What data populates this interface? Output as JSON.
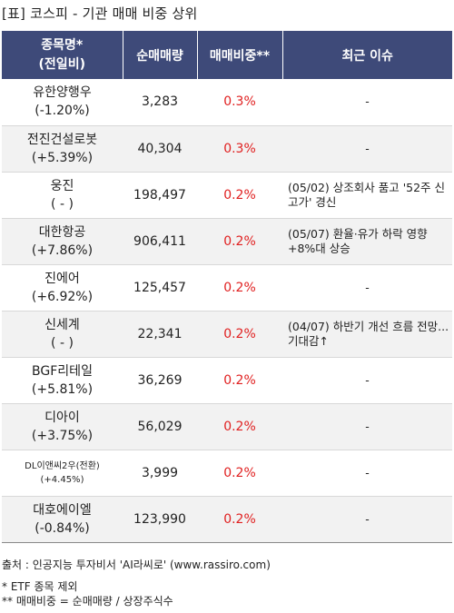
{
  "title": "[표] 코스피 - 기관 매매 비중 상위",
  "headers": {
    "name_line1": "종목명*",
    "name_line2": "(전일비)",
    "volume": "순매매량",
    "ratio": "매매비중**",
    "issue": "최근 이슈"
  },
  "rows": [
    {
      "name": "유한양행우",
      "change": "(-1.20%)",
      "volume": "3,283",
      "ratio": "0.3%",
      "issue": "-"
    },
    {
      "name": "전진건설로봇",
      "change": "(+5.39%)",
      "volume": "40,304",
      "ratio": "0.3%",
      "issue": "-"
    },
    {
      "name": "웅진",
      "change": "( - )",
      "volume": "198,497",
      "ratio": "0.2%",
      "issue": "(05/02) 상조회사 품고 '52주 신고가' 경신"
    },
    {
      "name": "대한항공",
      "change": "(+7.86%)",
      "volume": "906,411",
      "ratio": "0.2%",
      "issue": "(05/07) 환율·유가 하락 영향 +8%대 상승"
    },
    {
      "name": "진에어",
      "change": "(+6.92%)",
      "volume": "125,457",
      "ratio": "0.2%",
      "issue": "-"
    },
    {
      "name": "신세계",
      "change": "( - )",
      "volume": "22,341",
      "ratio": "0.2%",
      "issue": "(04/07) 하반기 개선 흐름 전망...기대감↑"
    },
    {
      "name": "BGF리테일",
      "change": "(+5.81%)",
      "volume": "36,269",
      "ratio": "0.2%",
      "issue": "-"
    },
    {
      "name": "디아이",
      "change": "(+3.75%)",
      "volume": "56,029",
      "ratio": "0.2%",
      "issue": "-"
    },
    {
      "name": "DL이앤씨2우(전환)",
      "change": "(+4.45%)",
      "volume": "3,999",
      "ratio": "0.2%",
      "issue": "-"
    },
    {
      "name": "대호에이엘",
      "change": "(-0.84%)",
      "volume": "123,990",
      "ratio": "0.2%",
      "issue": "-"
    }
  ],
  "footer": {
    "source": "출처 : 인공지능 투자비서 'AI라씨로' (www.rassiro.com)",
    "note1": "* ETF 종목 제외",
    "note2": "** 매매비중 = 순매매량 / 상장주식수"
  }
}
